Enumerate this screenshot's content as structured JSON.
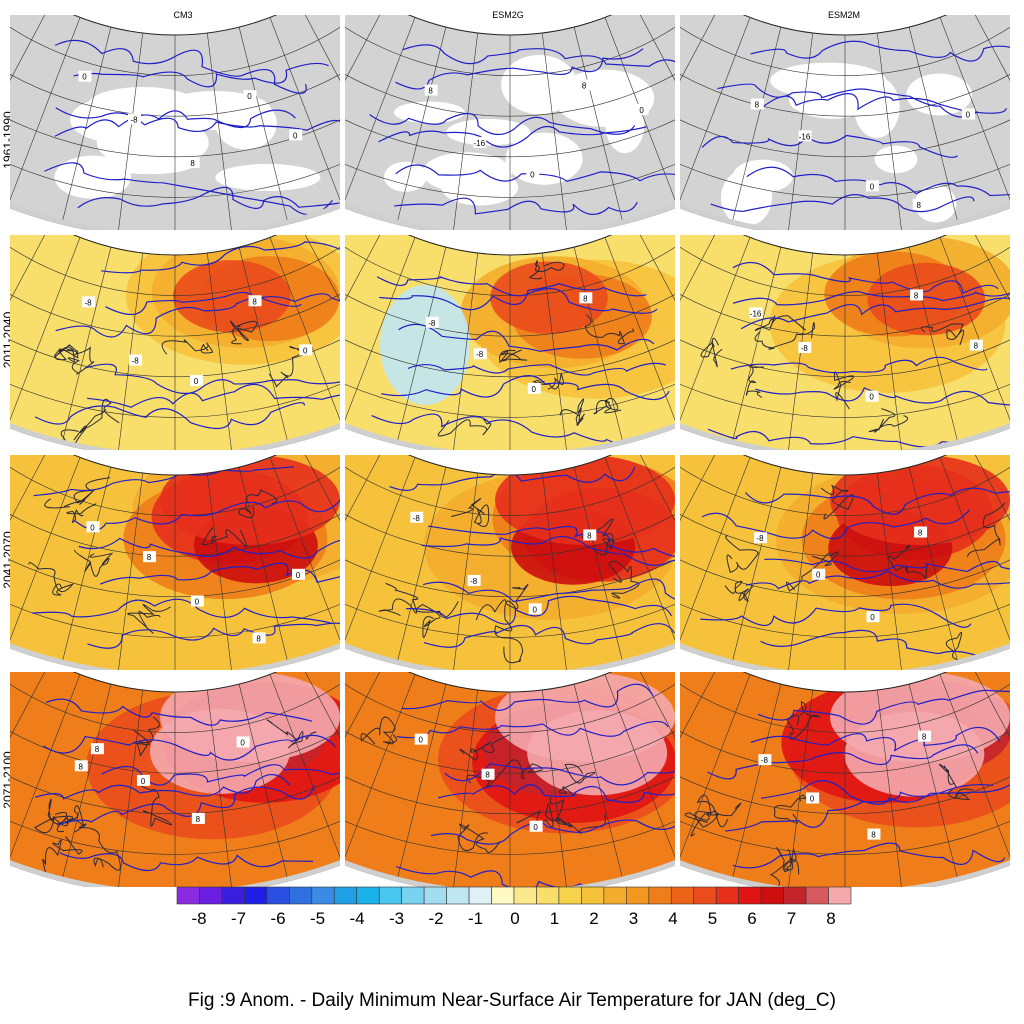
{
  "columns": [
    "CM3",
    "ESM2G",
    "ESM2M"
  ],
  "rows": [
    "1961-1990",
    "2011-2040",
    "2041-2070",
    "2071-2100"
  ],
  "colorbar": {
    "ticks": [
      "-8",
      "-7",
      "-6",
      "-5",
      "-4",
      "-3",
      "-2",
      "-1",
      "0",
      "1",
      "2",
      "3",
      "4",
      "5",
      "6",
      "7",
      "8"
    ],
    "colors": [
      "#8a2be2",
      "#6a1fe0",
      "#3a1ee0",
      "#1e1ee6",
      "#2a4fe0",
      "#2f6fe0",
      "#3b8ae6",
      "#209fe6",
      "#19b3ea",
      "#48c6ef",
      "#78d3f0",
      "#a2dcef",
      "#c0e6f3",
      "#dff0f7",
      "#fff9c4",
      "#fbe98b",
      "#f8de6a",
      "#f7d24d",
      "#f6c23b",
      "#f3ad2c",
      "#f29720",
      "#ef7d1a",
      "#ec6418",
      "#ea4c1c",
      "#e6301c",
      "#e01414",
      "#cc0e0e",
      "#c4242b",
      "#d85a5f",
      "#f4a9ad"
    ],
    "unit": "deg_C"
  },
  "caption": "Fig :9  Anom.  - Daily Minimum Near-Surface Air Temperature for JAN (deg_C)",
  "contour_labels": {
    "r0": [
      [
        "0",
        "-8",
        "8",
        "0",
        "0"
      ],
      [
        "8",
        "-16",
        "0",
        "8",
        "0"
      ],
      [
        "8",
        "-16",
        "0",
        "8",
        "0"
      ]
    ],
    "r1": [
      [
        "-8",
        "-8",
        "0",
        "8",
        "0"
      ],
      [
        "-8",
        "-8",
        "0",
        "8"
      ],
      [
        "-16",
        "-8",
        "0",
        "8",
        "8"
      ]
    ],
    "r2": [
      [
        "0",
        "8",
        "0",
        "8",
        "0"
      ],
      [
        "-8",
        "-8",
        "0",
        "8"
      ],
      [
        "-8",
        "0",
        "0",
        "8"
      ]
    ],
    "r3": [
      [
        "8",
        "0",
        "8",
        "0",
        "8"
      ],
      [
        "0",
        "8",
        "0"
      ],
      [
        "-8",
        "0",
        "8",
        "8"
      ]
    ]
  },
  "fill_theme": {
    "r0": "none",
    "r1": "warm-moderate",
    "r2": "warm-strong",
    "r3": "warm-extreme"
  }
}
